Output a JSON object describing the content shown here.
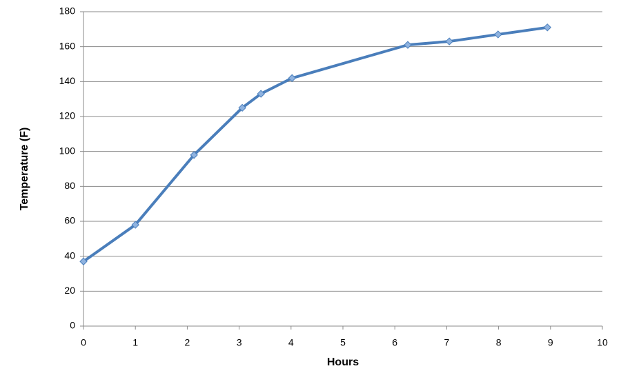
{
  "chart_data": {
    "type": "line",
    "x_label": "Hours",
    "y_label": "Temperature  (F)",
    "x": [
      0,
      1,
      2.13,
      3.06,
      3.42,
      4.02,
      6.25,
      7.05,
      7.99,
      8.94
    ],
    "values": [
      37,
      58,
      98,
      125,
      133,
      142,
      161,
      163,
      167,
      171
    ],
    "color": "#4a7ebb",
    "marker_color": "#8fb3e0",
    "xlim": [
      0,
      10
    ],
    "xticks": [
      0,
      1,
      2,
      3,
      4,
      5,
      6,
      7,
      8,
      9,
      10
    ],
    "ylim": [
      0,
      180
    ],
    "yticks": [
      0,
      20,
      40,
      60,
      80,
      100,
      120,
      140,
      160,
      180
    ],
    "grid": true
  }
}
